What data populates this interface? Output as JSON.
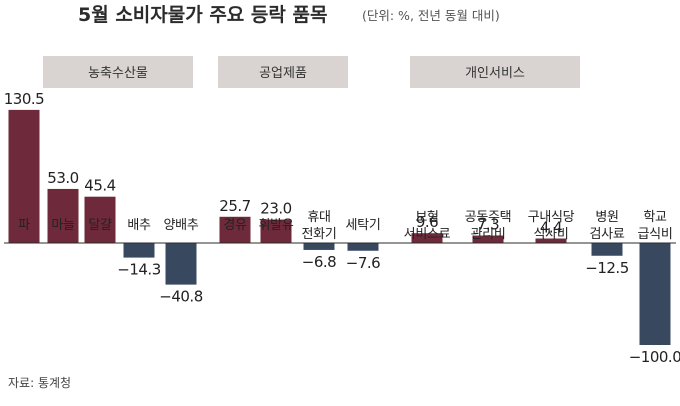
{
  "chart_data": {
    "type": "bar",
    "title": "5월 소비자물가 주요 등락 품목",
    "subtitle": "(단위: %, 전년 동월 대비)",
    "unit": "%",
    "source": "자료: 통계청",
    "colors": {
      "positive": "#6e2a3a",
      "negative": "#38485f",
      "group_band": "#d9d4d2",
      "zero_line": "#2b2b2b"
    },
    "ylim": [
      -100,
      130.5
    ],
    "grid": false,
    "groups": [
      {
        "label": "농축수산물",
        "first": 0,
        "last": 4
      },
      {
        "label": "공업제품",
        "first": 5,
        "last": 8
      },
      {
        "label": "개인서비스",
        "first": 9,
        "last": 13
      }
    ],
    "categories": [
      [
        "파"
      ],
      [
        "마늘"
      ],
      [
        "달걀"
      ],
      [
        "배추"
      ],
      [
        "양배추"
      ],
      [
        "경유"
      ],
      [
        "휘발유"
      ],
      [
        "휴대",
        "전화기"
      ],
      [
        "세탁기"
      ],
      [
        "보험",
        "서비스료"
      ],
      [
        "공동주택",
        "관리비"
      ],
      [
        "구내식당",
        "식사비"
      ],
      [
        "병원",
        "검사료"
      ],
      [
        "학교",
        "급식비"
      ]
    ],
    "values": [
      130.5,
      53.0,
      45.4,
      -14.3,
      -40.8,
      25.7,
      23.0,
      -6.8,
      -7.6,
      9.6,
      7.3,
      4.4,
      -12.5,
      -100.0
    ],
    "value_labels": [
      "130.5",
      "53.0",
      "45.4",
      "−14.3",
      "−40.8",
      "25.7",
      "23.0",
      "−6.8",
      "−7.6",
      "9.6",
      "7.3",
      "4.4",
      "−12.5",
      "−100.0"
    ]
  }
}
